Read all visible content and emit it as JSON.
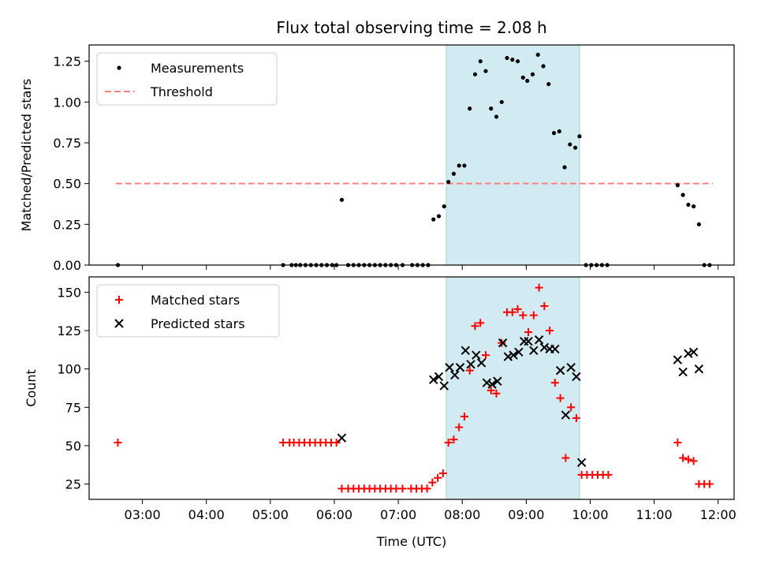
{
  "title": "Flux total observing time = 2.08 h",
  "colors": {
    "threshold": "#ff7f7f",
    "shade": "#add8e6",
    "matched": "#ff0000",
    "predicted": "#000000",
    "measurements": "#000000"
  },
  "chart_data": [
    {
      "type": "scatter",
      "ylabel": "Matched/Predicted stars",
      "ylim": [
        0,
        1.35
      ],
      "yticks": [
        0.0,
        0.25,
        0.5,
        0.75,
        1.0,
        1.25
      ],
      "ytick_labels": [
        "0.00",
        "0.25",
        "0.50",
        "0.75",
        "1.00",
        "1.25"
      ],
      "grid": false,
      "legend_position": "top-left",
      "observing_window": {
        "start": "07:45",
        "end": "09:50"
      },
      "threshold": {
        "name": "Threshold",
        "y": 0.5,
        "x_start": "02:35",
        "x_end": "11:55"
      },
      "series": [
        {
          "name": "Measurements",
          "marker": "dot",
          "points": [
            [
              "02:37",
              0.0
            ],
            [
              "05:12",
              0.0
            ],
            [
              "05:20",
              0.0
            ],
            [
              "05:24",
              0.0
            ],
            [
              "05:28",
              0.0
            ],
            [
              "05:33",
              0.0
            ],
            [
              "05:38",
              0.0
            ],
            [
              "05:43",
              0.0
            ],
            [
              "05:48",
              0.0
            ],
            [
              "05:53",
              0.0
            ],
            [
              "05:58",
              0.0
            ],
            [
              "06:02",
              0.0
            ],
            [
              "06:07",
              0.4
            ],
            [
              "06:13",
              0.0
            ],
            [
              "06:18",
              0.0
            ],
            [
              "06:23",
              0.0
            ],
            [
              "06:28",
              0.0
            ],
            [
              "06:33",
              0.0
            ],
            [
              "06:38",
              0.0
            ],
            [
              "06:43",
              0.0
            ],
            [
              "06:48",
              0.0
            ],
            [
              "06:53",
              0.0
            ],
            [
              "06:58",
              0.0
            ],
            [
              "07:04",
              0.0
            ],
            [
              "07:13",
              0.0
            ],
            [
              "07:18",
              0.0
            ],
            [
              "07:23",
              0.0
            ],
            [
              "07:28",
              0.0
            ],
            [
              "07:33",
              0.28
            ],
            [
              "07:38",
              0.3
            ],
            [
              "07:43",
              0.36
            ],
            [
              "07:47",
              0.51
            ],
            [
              "07:52",
              0.56
            ],
            [
              "07:57",
              0.61
            ],
            [
              "08:02",
              0.61
            ],
            [
              "08:07",
              0.96
            ],
            [
              "08:12",
              1.17
            ],
            [
              "08:17",
              1.25
            ],
            [
              "08:22",
              1.19
            ],
            [
              "08:27",
              0.96
            ],
            [
              "08:32",
              0.91
            ],
            [
              "08:37",
              1.0
            ],
            [
              "08:42",
              1.27
            ],
            [
              "08:47",
              1.26
            ],
            [
              "08:52",
              1.25
            ],
            [
              "08:57",
              1.15
            ],
            [
              "09:01",
              1.13
            ],
            [
              "09:06",
              1.17
            ],
            [
              "09:11",
              1.29
            ],
            [
              "09:16",
              1.22
            ],
            [
              "09:21",
              1.11
            ],
            [
              "09:26",
              0.81
            ],
            [
              "09:31",
              0.82
            ],
            [
              "09:36",
              0.6
            ],
            [
              "09:41",
              0.74
            ],
            [
              "09:46",
              0.72
            ],
            [
              "09:50",
              0.79
            ],
            [
              "09:56",
              0.0
            ],
            [
              "10:01",
              0.0
            ],
            [
              "10:06",
              0.0
            ],
            [
              "10:11",
              0.0
            ],
            [
              "10:16",
              0.0
            ],
            [
              "11:22",
              0.49
            ],
            [
              "11:27",
              0.43
            ],
            [
              "11:32",
              0.37
            ],
            [
              "11:37",
              0.36
            ],
            [
              "11:42",
              0.25
            ],
            [
              "11:47",
              0.0
            ],
            [
              "11:52",
              0.0
            ]
          ]
        }
      ]
    },
    {
      "type": "scatter",
      "xlabel": "Time (UTC)",
      "ylabel": "Count",
      "ylim": [
        15,
        160
      ],
      "yticks": [
        25,
        50,
        75,
        100,
        125,
        150
      ],
      "ytick_labels": [
        "25",
        "50",
        "75",
        "100",
        "125",
        "150"
      ],
      "xlim": [
        "02:10",
        "12:15"
      ],
      "xtick_labels": [
        "03:00",
        "04:00",
        "05:00",
        "06:00",
        "07:00",
        "08:00",
        "09:00",
        "10:00",
        "11:00",
        "12:00"
      ],
      "grid": false,
      "legend_position": "top-left",
      "observing_window": {
        "start": "07:45",
        "end": "09:50"
      },
      "series": [
        {
          "name": "Matched stars",
          "marker": "plus",
          "points": [
            [
              "02:37",
              52
            ],
            [
              "05:12",
              52
            ],
            [
              "05:18",
              52
            ],
            [
              "05:22",
              52
            ],
            [
              "05:27",
              52
            ],
            [
              "05:32",
              52
            ],
            [
              "05:37",
              52
            ],
            [
              "05:42",
              52
            ],
            [
              "05:47",
              52
            ],
            [
              "05:52",
              52
            ],
            [
              "05:57",
              52
            ],
            [
              "06:02",
              52
            ],
            [
              "06:07",
              22
            ],
            [
              "06:13",
              22
            ],
            [
              "06:18",
              22
            ],
            [
              "06:23",
              22
            ],
            [
              "06:28",
              22
            ],
            [
              "06:33",
              22
            ],
            [
              "06:38",
              22
            ],
            [
              "06:43",
              22
            ],
            [
              "06:48",
              22
            ],
            [
              "06:53",
              22
            ],
            [
              "06:58",
              22
            ],
            [
              "07:04",
              22
            ],
            [
              "07:12",
              22
            ],
            [
              "07:17",
              22
            ],
            [
              "07:22",
              22
            ],
            [
              "07:27",
              22
            ],
            [
              "07:32",
              26
            ],
            [
              "07:37",
              29
            ],
            [
              "07:42",
              32
            ],
            [
              "07:47",
              52
            ],
            [
              "07:52",
              54
            ],
            [
              "07:57",
              62
            ],
            [
              "08:02",
              69
            ],
            [
              "08:07",
              99
            ],
            [
              "08:12",
              128
            ],
            [
              "08:17",
              130
            ],
            [
              "08:22",
              109
            ],
            [
              "08:27",
              86
            ],
            [
              "08:32",
              84
            ],
            [
              "08:37",
              117
            ],
            [
              "08:42",
              137
            ],
            [
              "08:47",
              137
            ],
            [
              "08:52",
              139
            ],
            [
              "08:57",
              135
            ],
            [
              "09:02",
              124
            ],
            [
              "09:07",
              135
            ],
            [
              "09:12",
              153
            ],
            [
              "09:17",
              141
            ],
            [
              "09:22",
              125
            ],
            [
              "09:27",
              91
            ],
            [
              "09:32",
              81
            ],
            [
              "09:37",
              42
            ],
            [
              "09:42",
              75
            ],
            [
              "09:47",
              68
            ],
            [
              "09:52",
              31
            ],
            [
              "09:57",
              31
            ],
            [
              "10:02",
              31
            ],
            [
              "10:07",
              31
            ],
            [
              "10:12",
              31
            ],
            [
              "10:17",
              31
            ],
            [
              "11:22",
              52
            ],
            [
              "11:27",
              42
            ],
            [
              "11:32",
              41
            ],
            [
              "11:37",
              40
            ],
            [
              "11:42",
              25
            ],
            [
              "11:47",
              25
            ],
            [
              "11:52",
              25
            ]
          ]
        },
        {
          "name": "Predicted stars",
          "marker": "x",
          "points": [
            [
              "06:07",
              55
            ],
            [
              "07:33",
              93
            ],
            [
              "07:38",
              95
            ],
            [
              "07:43",
              89
            ],
            [
              "07:48",
              101
            ],
            [
              "07:53",
              96
            ],
            [
              "07:58",
              101
            ],
            [
              "08:03",
              112
            ],
            [
              "08:08",
              103
            ],
            [
              "08:13",
              109
            ],
            [
              "08:18",
              104
            ],
            [
              "08:23",
              91
            ],
            [
              "08:28",
              90
            ],
            [
              "08:33",
              92
            ],
            [
              "08:38",
              117
            ],
            [
              "08:43",
              108
            ],
            [
              "08:48",
              109
            ],
            [
              "08:53",
              111
            ],
            [
              "08:58",
              118
            ],
            [
              "09:02",
              118
            ],
            [
              "09:07",
              112
            ],
            [
              "09:12",
              119
            ],
            [
              "09:17",
              114
            ],
            [
              "09:22",
              113
            ],
            [
              "09:27",
              113
            ],
            [
              "09:32",
              99
            ],
            [
              "09:37",
              70
            ],
            [
              "09:42",
              101
            ],
            [
              "09:47",
              95
            ],
            [
              "09:52",
              39
            ],
            [
              "11:22",
              106
            ],
            [
              "11:27",
              98
            ],
            [
              "11:32",
              110
            ],
            [
              "11:37",
              111
            ],
            [
              "11:42",
              100
            ]
          ]
        }
      ]
    }
  ]
}
